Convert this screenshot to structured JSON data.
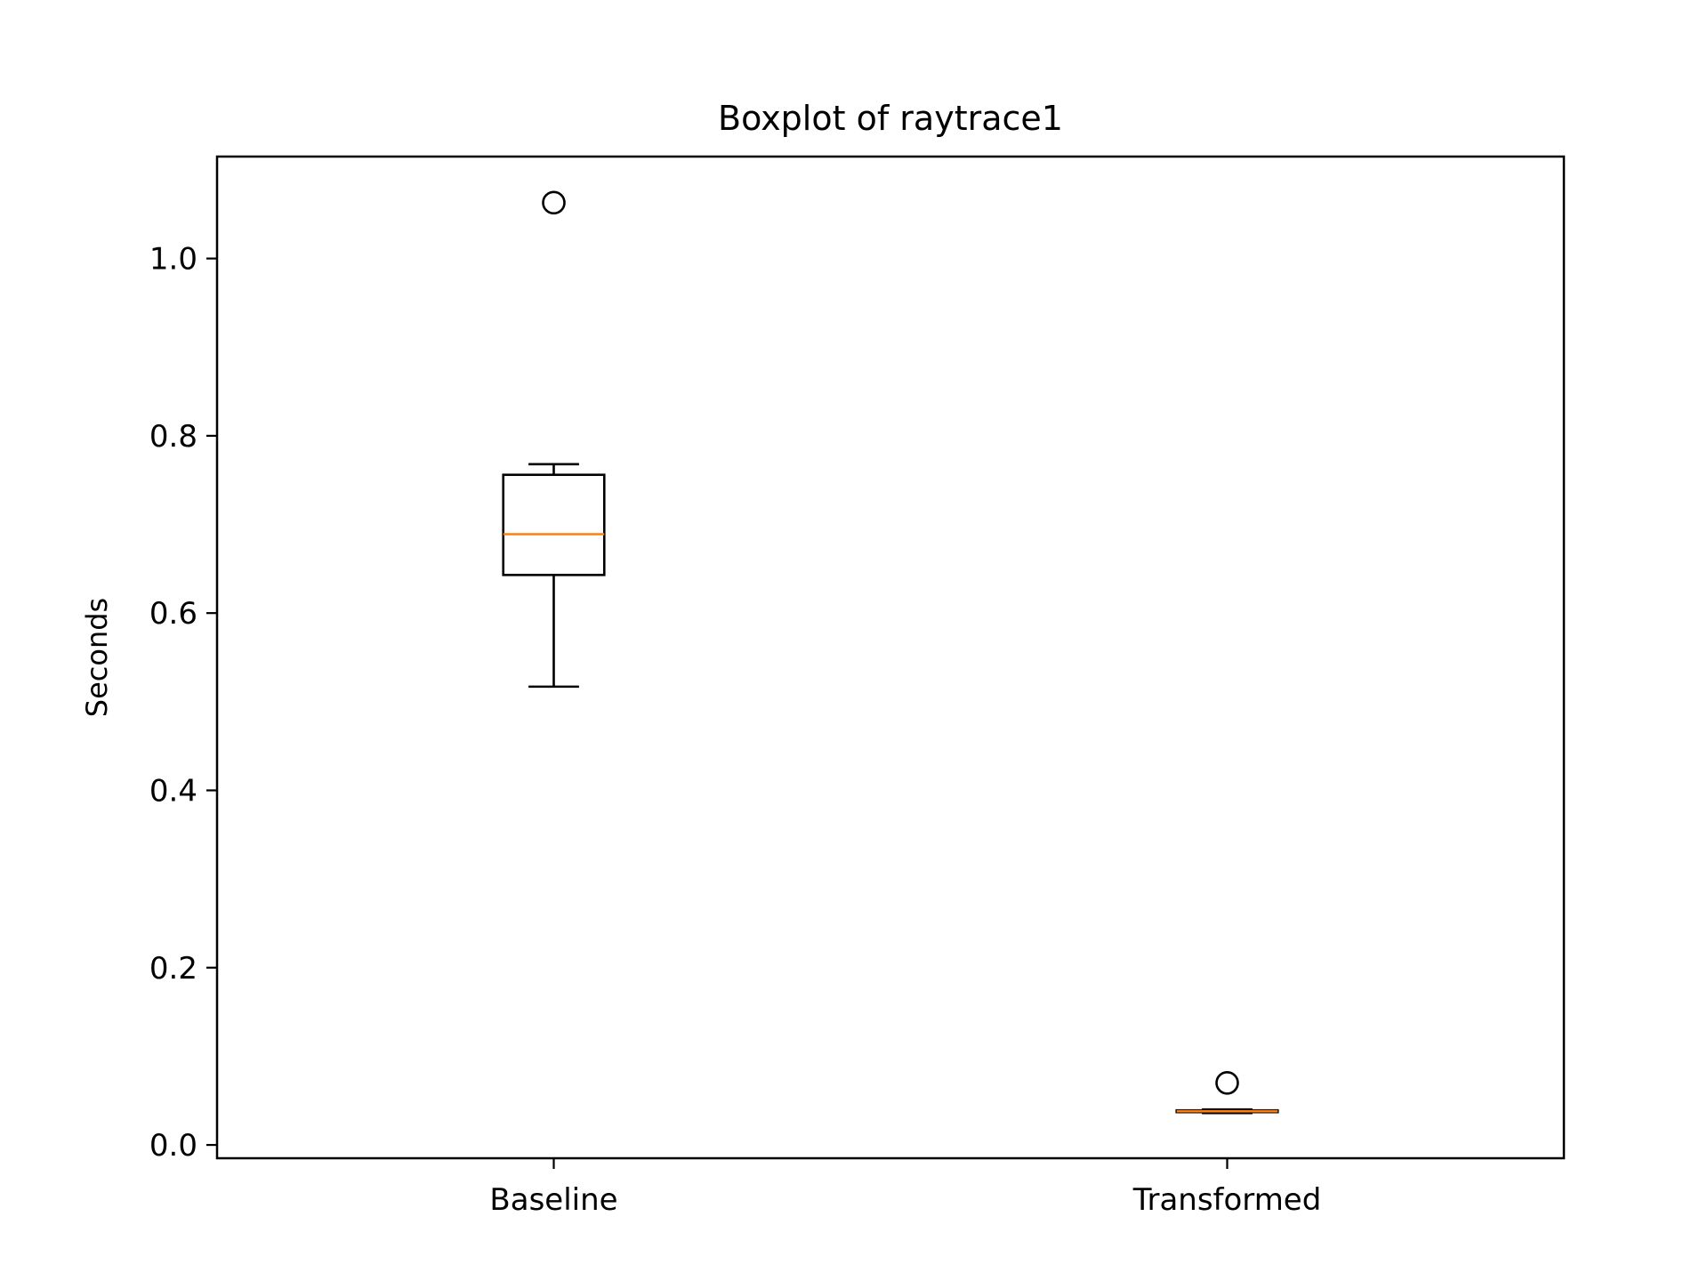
{
  "chart_data": {
    "type": "boxplot",
    "title": "Boxplot of raytrace1",
    "xlabel": "",
    "ylabel": "Seconds",
    "categories": [
      "Baseline",
      "Transformed"
    ],
    "boxes": [
      {
        "label": "Baseline",
        "whisker_low": 0.517,
        "q1": 0.643,
        "median": 0.689,
        "q3": 0.756,
        "whisker_high": 0.768,
        "outliers": [
          1.063
        ]
      },
      {
        "label": "Transformed",
        "whisker_low": 0.036,
        "q1": 0.037,
        "median": 0.038,
        "q3": 0.039,
        "whisker_high": 0.04,
        "outliers": [
          0.07
        ]
      }
    ],
    "ylim": [
      -0.015,
      1.115
    ],
    "yticks": [
      0.0,
      0.2,
      0.4,
      0.6,
      0.8,
      1.0
    ],
    "ytick_labels": [
      "0.0",
      "0.2",
      "0.4",
      "0.6",
      "0.8",
      "1.0"
    ],
    "grid": false,
    "colors": {
      "box": "#000000",
      "median": "#ff7f0e",
      "outlier": "#000000",
      "axes": "#000000"
    }
  }
}
